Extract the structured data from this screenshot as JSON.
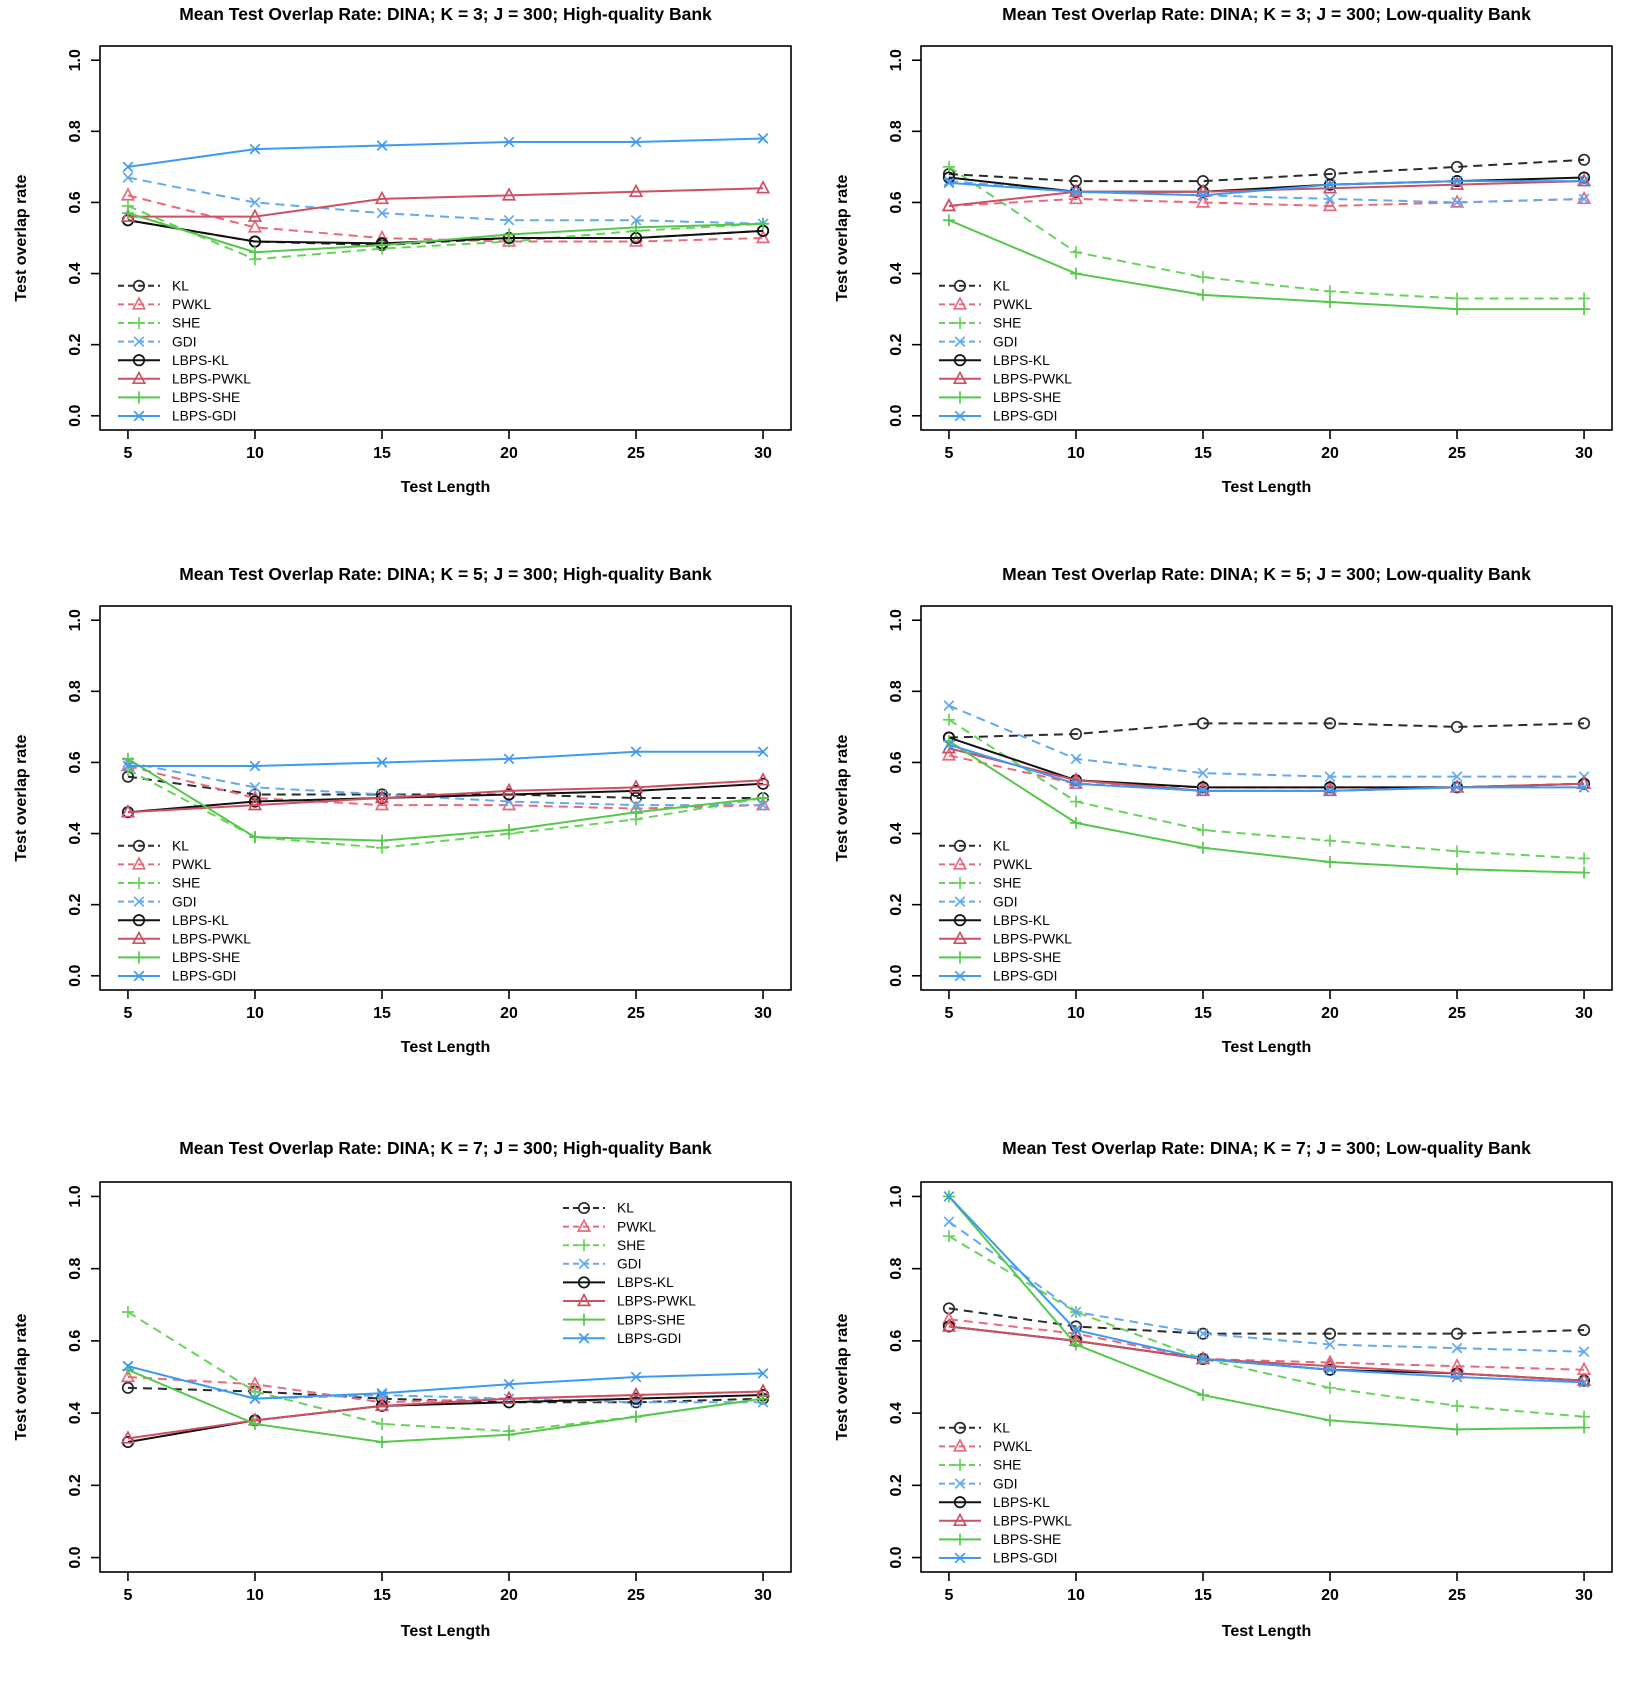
{
  "figure": {
    "description_xlabel": "Test Length",
    "description_ylabel": "Test overlap rate"
  },
  "series_styles": [
    {
      "name": "KL",
      "color": "#2b2b2b",
      "dash": true,
      "marker": "circle"
    },
    {
      "name": "PWKL",
      "color": "#e9687b",
      "dash": true,
      "marker": "triangle"
    },
    {
      "name": "SHE",
      "color": "#68d25c",
      "dash": true,
      "marker": "plus"
    },
    {
      "name": "GDI",
      "color": "#62a9f0",
      "dash": true,
      "marker": "x"
    },
    {
      "name": "LBPS-KL",
      "color": "#111111",
      "dash": false,
      "marker": "circle"
    },
    {
      "name": "LBPS-PWKL",
      "color": "#cf4f63",
      "dash": false,
      "marker": "triangle"
    },
    {
      "name": "LBPS-SHE",
      "color": "#55c84a",
      "dash": false,
      "marker": "plus"
    },
    {
      "name": "LBPS-GDI",
      "color": "#3e9af0",
      "dash": false,
      "marker": "x"
    }
  ],
  "chart_data": [
    {
      "type": "line",
      "title": "Mean Test Overlap Rate: DINA; K = 3; J = 300; High-quality Bank",
      "xlabel": "Test Length",
      "ylabel": "Test overlap rate",
      "x": [
        5,
        10,
        15,
        20,
        25,
        30
      ],
      "xticks": [
        5,
        10,
        15,
        20,
        25,
        30
      ],
      "yticks": [
        0.0,
        0.2,
        0.4,
        0.6,
        0.8,
        1.0
      ],
      "ylim": [
        0.0,
        1.0
      ],
      "grid": false,
      "legend_position": "bottom-left",
      "series": [
        {
          "name": "KL",
          "values": [
            0.55,
            0.49,
            0.48,
            0.5,
            0.5,
            0.52
          ]
        },
        {
          "name": "PWKL",
          "values": [
            0.62,
            0.53,
            0.5,
            0.49,
            0.49,
            0.5
          ]
        },
        {
          "name": "SHE",
          "values": [
            0.59,
            0.44,
            0.47,
            0.49,
            0.52,
            0.54
          ]
        },
        {
          "name": "GDI",
          "values": [
            0.67,
            0.6,
            0.57,
            0.55,
            0.55,
            0.54
          ]
        },
        {
          "name": "LBPS-KL",
          "values": [
            0.55,
            0.49,
            0.485,
            0.5,
            0.5,
            0.52
          ]
        },
        {
          "name": "LBPS-PWKL",
          "values": [
            0.56,
            0.56,
            0.61,
            0.62,
            0.63,
            0.64
          ]
        },
        {
          "name": "LBPS-SHE",
          "values": [
            0.57,
            0.46,
            0.48,
            0.51,
            0.53,
            0.54
          ]
        },
        {
          "name": "LBPS-GDI",
          "values": [
            0.7,
            0.75,
            0.76,
            0.77,
            0.77,
            0.78
          ]
        }
      ]
    },
    {
      "type": "line",
      "title": "Mean Test Overlap Rate: DINA; K = 3; J = 300; Low-quality Bank",
      "xlabel": "Test Length",
      "ylabel": "Test overlap rate",
      "x": [
        5,
        10,
        15,
        20,
        25,
        30
      ],
      "xticks": [
        5,
        10,
        15,
        20,
        25,
        30
      ],
      "yticks": [
        0.0,
        0.2,
        0.4,
        0.6,
        0.8,
        1.0
      ],
      "ylim": [
        0.0,
        1.0
      ],
      "grid": false,
      "legend_position": "bottom-left",
      "series": [
        {
          "name": "KL",
          "values": [
            0.68,
            0.66,
            0.66,
            0.68,
            0.7,
            0.72
          ]
        },
        {
          "name": "PWKL",
          "values": [
            0.59,
            0.61,
            0.6,
            0.59,
            0.6,
            0.61
          ]
        },
        {
          "name": "SHE",
          "values": [
            0.7,
            0.46,
            0.39,
            0.35,
            0.33,
            0.33
          ]
        },
        {
          "name": "GDI",
          "values": [
            0.66,
            0.63,
            0.62,
            0.61,
            0.6,
            0.61
          ]
        },
        {
          "name": "LBPS-KL",
          "values": [
            0.67,
            0.63,
            0.63,
            0.65,
            0.66,
            0.67
          ]
        },
        {
          "name": "LBPS-PWKL",
          "values": [
            0.59,
            0.63,
            0.63,
            0.64,
            0.65,
            0.66
          ]
        },
        {
          "name": "LBPS-SHE",
          "values": [
            0.55,
            0.4,
            0.34,
            0.32,
            0.3,
            0.3
          ]
        },
        {
          "name": "LBPS-GDI",
          "values": [
            0.655,
            0.63,
            0.62,
            0.65,
            0.66,
            0.66
          ]
        }
      ]
    },
    {
      "type": "line",
      "title": "Mean Test Overlap Rate: DINA; K = 5; J = 300; High-quality Bank",
      "xlabel": "Test Length",
      "ylabel": "Test overlap rate",
      "x": [
        5,
        10,
        15,
        20,
        25,
        30
      ],
      "xticks": [
        5,
        10,
        15,
        20,
        25,
        30
      ],
      "yticks": [
        0.0,
        0.2,
        0.4,
        0.6,
        0.8,
        1.0
      ],
      "ylim": [
        0.0,
        1.0
      ],
      "grid": false,
      "legend_position": "bottom-left",
      "series": [
        {
          "name": "KL",
          "values": [
            0.56,
            0.51,
            0.51,
            0.51,
            0.5,
            0.5
          ]
        },
        {
          "name": "PWKL",
          "values": [
            0.59,
            0.5,
            0.48,
            0.48,
            0.47,
            0.48
          ]
        },
        {
          "name": "SHE",
          "values": [
            0.58,
            0.39,
            0.36,
            0.4,
            0.44,
            0.5
          ]
        },
        {
          "name": "GDI",
          "values": [
            0.6,
            0.53,
            0.51,
            0.49,
            0.48,
            0.48
          ]
        },
        {
          "name": "LBPS-KL",
          "values": [
            0.46,
            0.49,
            0.5,
            0.51,
            0.52,
            0.54
          ]
        },
        {
          "name": "LBPS-PWKL",
          "values": [
            0.46,
            0.48,
            0.5,
            0.52,
            0.53,
            0.55
          ]
        },
        {
          "name": "LBPS-SHE",
          "values": [
            0.61,
            0.39,
            0.38,
            0.41,
            0.46,
            0.5
          ]
        },
        {
          "name": "LBPS-GDI",
          "values": [
            0.59,
            0.59,
            0.6,
            0.61,
            0.63,
            0.63
          ]
        }
      ]
    },
    {
      "type": "line",
      "title": "Mean Test Overlap Rate: DINA; K = 5; J = 300; Low-quality Bank",
      "xlabel": "Test Length",
      "ylabel": "Test overlap rate",
      "x": [
        5,
        10,
        15,
        20,
        25,
        30
      ],
      "xticks": [
        5,
        10,
        15,
        20,
        25,
        30
      ],
      "yticks": [
        0.0,
        0.2,
        0.4,
        0.6,
        0.8,
        1.0
      ],
      "ylim": [
        0.0,
        1.0
      ],
      "grid": false,
      "legend_position": "bottom-left",
      "series": [
        {
          "name": "KL",
          "values": [
            0.67,
            0.68,
            0.71,
            0.71,
            0.7,
            0.71
          ]
        },
        {
          "name": "PWKL",
          "values": [
            0.62,
            0.54,
            0.53,
            0.53,
            0.53,
            0.54
          ]
        },
        {
          "name": "SHE",
          "values": [
            0.72,
            0.49,
            0.41,
            0.38,
            0.35,
            0.33
          ]
        },
        {
          "name": "GDI",
          "values": [
            0.76,
            0.61,
            0.57,
            0.56,
            0.56,
            0.56
          ]
        },
        {
          "name": "LBPS-KL",
          "values": [
            0.67,
            0.55,
            0.53,
            0.53,
            0.53,
            0.54
          ]
        },
        {
          "name": "LBPS-PWKL",
          "values": [
            0.64,
            0.55,
            0.52,
            0.52,
            0.53,
            0.54
          ]
        },
        {
          "name": "LBPS-SHE",
          "values": [
            0.66,
            0.43,
            0.36,
            0.32,
            0.3,
            0.29
          ]
        },
        {
          "name": "LBPS-GDI",
          "values": [
            0.65,
            0.54,
            0.52,
            0.52,
            0.53,
            0.53
          ]
        }
      ]
    },
    {
      "type": "line",
      "title": "Mean Test Overlap Rate: DINA; K = 7; J = 300; High-quality Bank",
      "xlabel": "Test Length",
      "ylabel": "Test overlap rate",
      "x": [
        5,
        10,
        15,
        20,
        25,
        30
      ],
      "xticks": [
        5,
        10,
        15,
        20,
        25,
        30
      ],
      "yticks": [
        0.0,
        0.2,
        0.4,
        0.6,
        0.8,
        1.0
      ],
      "ylim": [
        0.0,
        1.0
      ],
      "grid": false,
      "legend_position": "top-right",
      "series": [
        {
          "name": "KL",
          "values": [
            0.47,
            0.46,
            0.44,
            0.43,
            0.43,
            0.44
          ]
        },
        {
          "name": "PWKL",
          "values": [
            0.5,
            0.48,
            0.43,
            0.44,
            0.45,
            0.46
          ]
        },
        {
          "name": "SHE",
          "values": [
            0.68,
            0.46,
            0.37,
            0.35,
            0.39,
            0.44
          ]
        },
        {
          "name": "GDI",
          "values": [
            0.53,
            0.44,
            0.45,
            0.44,
            0.43,
            0.43
          ]
        },
        {
          "name": "LBPS-KL",
          "values": [
            0.32,
            0.38,
            0.42,
            0.43,
            0.44,
            0.45
          ]
        },
        {
          "name": "LBPS-PWKL",
          "values": [
            0.33,
            0.38,
            0.42,
            0.44,
            0.45,
            0.46
          ]
        },
        {
          "name": "LBPS-SHE",
          "values": [
            0.52,
            0.37,
            0.32,
            0.34,
            0.39,
            0.44
          ]
        },
        {
          "name": "LBPS-GDI",
          "values": [
            0.53,
            0.44,
            0.455,
            0.48,
            0.5,
            0.51
          ]
        }
      ]
    },
    {
      "type": "line",
      "title": "Mean Test Overlap Rate: DINA; K = 7; J = 300; Low-quality Bank",
      "xlabel": "Test Length",
      "ylabel": "Test overlap rate",
      "x": [
        5,
        10,
        15,
        20,
        25,
        30
      ],
      "xticks": [
        5,
        10,
        15,
        20,
        25,
        30
      ],
      "yticks": [
        0.0,
        0.2,
        0.4,
        0.6,
        0.8,
        1.0
      ],
      "ylim": [
        0.0,
        1.0
      ],
      "grid": false,
      "legend_position": "bottom-left",
      "series": [
        {
          "name": "KL",
          "values": [
            0.69,
            0.64,
            0.62,
            0.62,
            0.62,
            0.63
          ]
        },
        {
          "name": "PWKL",
          "values": [
            0.66,
            0.62,
            0.55,
            0.54,
            0.53,
            0.52
          ]
        },
        {
          "name": "SHE",
          "values": [
            0.89,
            0.68,
            0.55,
            0.47,
            0.42,
            0.39
          ]
        },
        {
          "name": "GDI",
          "values": [
            0.93,
            0.68,
            0.62,
            0.59,
            0.58,
            0.57
          ]
        },
        {
          "name": "LBPS-KL",
          "values": [
            0.64,
            0.6,
            0.55,
            0.52,
            0.51,
            0.49
          ]
        },
        {
          "name": "LBPS-PWKL",
          "values": [
            0.64,
            0.6,
            0.55,
            0.53,
            0.51,
            0.49
          ]
        },
        {
          "name": "LBPS-SHE",
          "values": [
            1.0,
            0.59,
            0.45,
            0.38,
            0.355,
            0.36
          ]
        },
        {
          "name": "LBPS-GDI",
          "values": [
            1.0,
            0.63,
            0.55,
            0.52,
            0.5,
            0.485
          ]
        }
      ]
    }
  ]
}
